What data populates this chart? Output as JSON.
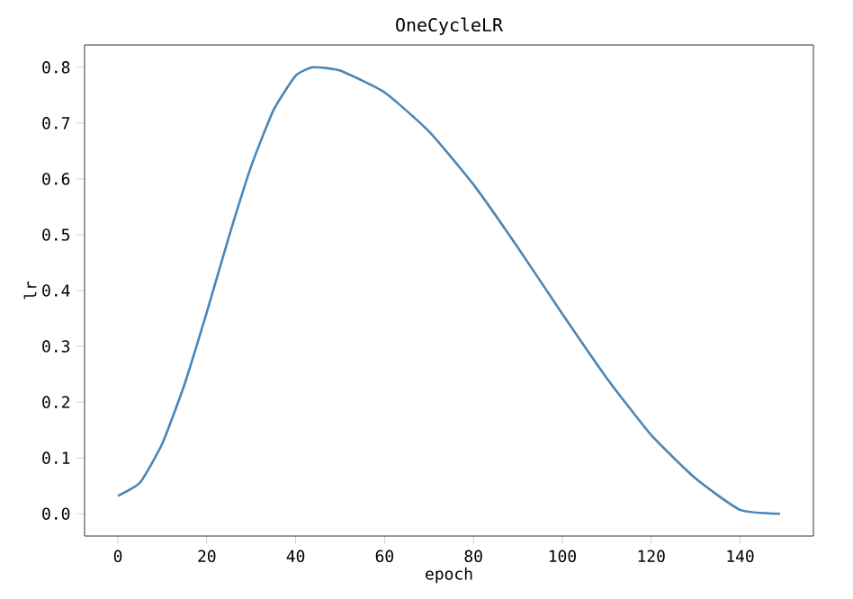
{
  "chart_data": {
    "type": "line",
    "title": "OneCycleLR",
    "xlabel": "epoch",
    "ylabel": "lr",
    "x": [
      0,
      5,
      10,
      15,
      20,
      25,
      30,
      35,
      40,
      44,
      50,
      60,
      70,
      80,
      90,
      100,
      110,
      120,
      130,
      140,
      149
    ],
    "series": [
      {
        "color": "#4a86b8",
        "values": [
          0.032,
          0.056,
          0.126,
          0.232,
          0.361,
          0.497,
          0.623,
          0.723,
          0.785,
          0.8,
          0.794,
          0.755,
          0.685,
          0.59,
          0.477,
          0.358,
          0.243,
          0.141,
          0.063,
          0.007,
          0.0
        ]
      }
    ],
    "xlim": [
      -7.5,
      156.5
    ],
    "ylim": [
      -0.04,
      0.84
    ],
    "xticks": [
      0,
      20,
      40,
      60,
      80,
      100,
      120,
      140
    ],
    "yticks": [
      {
        "value": 0,
        "label": "0.0"
      },
      0.1,
      0.2,
      0.3,
      0.4,
      0.5,
      0.6,
      0.7,
      0.8
    ],
    "grid": false,
    "marker": "none",
    "line_style": "solid"
  }
}
